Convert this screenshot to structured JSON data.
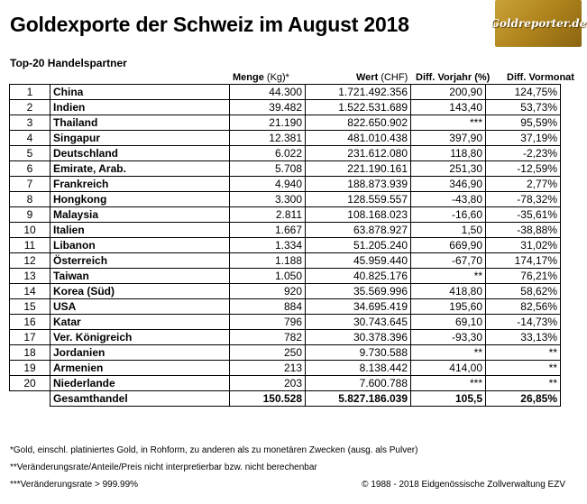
{
  "title": "Goldexporte der Schweiz im August 2018",
  "logo_text": "Goldreporter.de",
  "subtitle": "Top-20 Handelspartner",
  "headers": {
    "menge": "Menge",
    "menge_unit": "(Kg)*",
    "wert": "Wert",
    "wert_unit": "(CHF)",
    "vorjahr": "Diff. Vorjahr (%)",
    "vormonat": "Diff. Vormonat"
  },
  "rows": [
    {
      "rank": "1",
      "country": "China",
      "menge": "44.300",
      "wert": "1.721.492.356",
      "vj": "200,90",
      "vm": "124,75%"
    },
    {
      "rank": "2",
      "country": "Indien",
      "menge": "39.482",
      "wert": "1.522.531.689",
      "vj": "143,40",
      "vm": "53,73%"
    },
    {
      "rank": "3",
      "country": "Thailand",
      "menge": "21.190",
      "wert": "822.650.902",
      "vj": "***",
      "vm": "95,59%"
    },
    {
      "rank": "4",
      "country": "Singapur",
      "menge": "12.381",
      "wert": "481.010.438",
      "vj": "397,90",
      "vm": "37,19%"
    },
    {
      "rank": "5",
      "country": "Deutschland",
      "menge": "6.022",
      "wert": "231.612.080",
      "vj": "118,80",
      "vm": "-2,23%"
    },
    {
      "rank": "6",
      "country": "Emirate, Arab.",
      "menge": "5.708",
      "wert": "221.190.161",
      "vj": "251,30",
      "vm": "-12,59%"
    },
    {
      "rank": "7",
      "country": "Frankreich",
      "menge": "4.940",
      "wert": "188.873.939",
      "vj": "346,90",
      "vm": "2,77%"
    },
    {
      "rank": "8",
      "country": "Hongkong",
      "menge": "3.300",
      "wert": "128.559.557",
      "vj": "-43,80",
      "vm": "-78,32%"
    },
    {
      "rank": "9",
      "country": "Malaysia",
      "menge": "2.811",
      "wert": "108.168.023",
      "vj": "-16,60",
      "vm": "-35,61%"
    },
    {
      "rank": "10",
      "country": "Italien",
      "menge": "1.667",
      "wert": "63.878.927",
      "vj": "1,50",
      "vm": "-38,88%"
    },
    {
      "rank": "11",
      "country": "Libanon",
      "menge": "1.334",
      "wert": "51.205.240",
      "vj": "669,90",
      "vm": "31,02%"
    },
    {
      "rank": "12",
      "country": "Österreich",
      "menge": "1.188",
      "wert": "45.959.440",
      "vj": "-67,70",
      "vm": "174,17%"
    },
    {
      "rank": "13",
      "country": "Taiwan",
      "menge": "1.050",
      "wert": "40.825.176",
      "vj": "**",
      "vm": "76,21%"
    },
    {
      "rank": "14",
      "country": "Korea (Süd)",
      "menge": "920",
      "wert": "35.569.996",
      "vj": "418,80",
      "vm": "58,62%"
    },
    {
      "rank": "15",
      "country": "USA",
      "menge": "884",
      "wert": "34.695.419",
      "vj": "195,60",
      "vm": "82,56%"
    },
    {
      "rank": "16",
      "country": "Katar",
      "menge": "796",
      "wert": "30.743.645",
      "vj": "69,10",
      "vm": "-14,73%"
    },
    {
      "rank": "17",
      "country": "Ver. Königreich",
      "menge": "782",
      "wert": "30.378.396",
      "vj": "-93,30",
      "vm": "33,13%"
    },
    {
      "rank": "18",
      "country": "Jordanien",
      "menge": "250",
      "wert": "9.730.588",
      "vj": "**",
      "vm": "**"
    },
    {
      "rank": "19",
      "country": "Armenien",
      "menge": "213",
      "wert": "8.138.442",
      "vj": "414,00",
      "vm": "**"
    },
    {
      "rank": "20",
      "country": "Niederlande",
      "menge": "203",
      "wert": "7.600.788",
      "vj": "***",
      "vm": "**"
    }
  ],
  "total": {
    "label": "Gesamthandel",
    "menge": "150.528",
    "wert": "5.827.186.039",
    "vj": "105,5",
    "vm": "26,85%"
  },
  "footnotes": [
    "*Gold, einschl. platiniertes Gold, in Rohform, zu anderen als zu monetären Zwecken (ausg. als Pulver)",
    "**Veränderungsrate/Anteile/Preis nicht interpretierbar bzw. nicht berechenbar",
    "***Veränderungsrate > 999.99%"
  ],
  "copyright": "© 1988 - 2018 Eidgenössische Zollverwaltung EZV"
}
